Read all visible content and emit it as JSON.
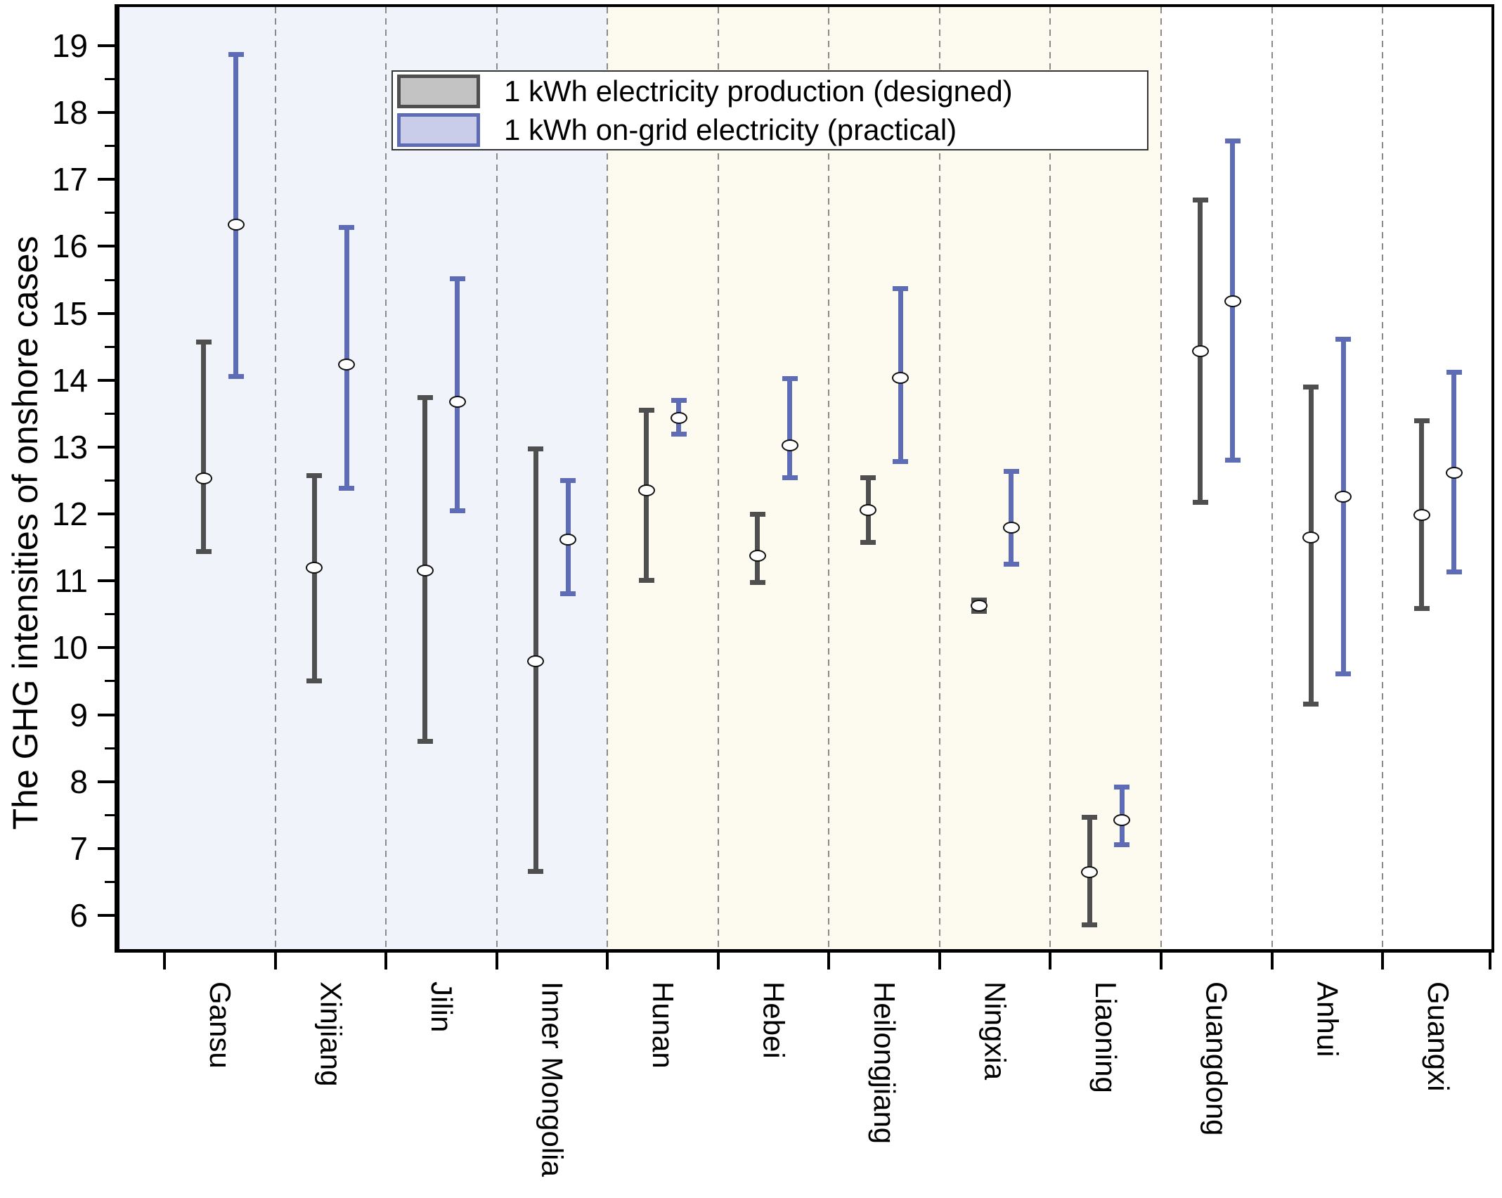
{
  "chart_data": {
    "type": "scatter",
    "subtype": "error-bar",
    "title": "",
    "xlabel": "",
    "ylabel": "The GHG intensities of onshore cases",
    "ylim": [
      5.5,
      19.6
    ],
    "yticks_major": [
      6,
      7,
      8,
      9,
      10,
      11,
      12,
      13,
      14,
      15,
      16,
      17,
      18,
      19
    ],
    "ytick_minor_values": [
      6.5,
      7.5,
      8.5,
      9.5,
      10.5,
      11.5,
      12.5,
      13.5,
      14.5,
      15.5,
      16.5,
      17.5,
      18.5
    ],
    "grid": "vertical-dashed-separators-between-categories",
    "legend_position": "top-center-inside",
    "separator_color": "#8a8a8a",
    "marker": {
      "shape": "ellipse",
      "fill": "#ffffff",
      "stroke": "#111111"
    },
    "categories": [
      "Gansu",
      "Xinjiang",
      "Jilin",
      "Inner Mongolia",
      "Hunan",
      "Hebei",
      "Heilongjiang",
      "Ningxia",
      "Liaoning",
      "Guangdong",
      "Anhui",
      "Guangxi"
    ],
    "series": [
      {
        "name": "1 kWh electricity production (designed)",
        "color": "#4f4f4f",
        "legend_fill": "#c3c3c3",
        "points": [
          {
            "y": 12.53,
            "lo": 11.43,
            "hi": 14.58
          },
          {
            "y": 11.2,
            "lo": 9.5,
            "hi": 12.58
          },
          {
            "y": 11.15,
            "lo": 8.6,
            "hi": 13.74
          },
          {
            "y": 9.8,
            "lo": 6.65,
            "hi": 12.98
          },
          {
            "y": 12.35,
            "lo": 11.0,
            "hi": 13.56
          },
          {
            "y": 11.38,
            "lo": 10.97,
            "hi": 12.0
          },
          {
            "y": 12.06,
            "lo": 11.57,
            "hi": 12.55
          },
          {
            "y": 10.63,
            "lo": 10.54,
            "hi": 10.72
          },
          {
            "y": 6.65,
            "lo": 5.85,
            "hi": 7.47
          },
          {
            "y": 14.43,
            "lo": 12.17,
            "hi": 16.7
          },
          {
            "y": 11.65,
            "lo": 9.15,
            "hi": 13.9
          },
          {
            "y": 11.98,
            "lo": 10.58,
            "hi": 13.4
          }
        ]
      },
      {
        "name": "1 kWh on-grid electricity (practical)",
        "color": "#5d6cb4",
        "legend_fill": "#c9cde9",
        "points": [
          {
            "y": 16.33,
            "lo": 14.05,
            "hi": 18.87
          },
          {
            "y": 14.23,
            "lo": 12.38,
            "hi": 16.29
          },
          {
            "y": 13.68,
            "lo": 12.04,
            "hi": 15.52
          },
          {
            "y": 11.62,
            "lo": 10.8,
            "hi": 12.5
          },
          {
            "y": 13.44,
            "lo": 13.19,
            "hi": 13.7
          },
          {
            "y": 13.02,
            "lo": 12.54,
            "hi": 14.03
          },
          {
            "y": 14.03,
            "lo": 12.78,
            "hi": 15.37
          },
          {
            "y": 11.8,
            "lo": 11.24,
            "hi": 12.64
          },
          {
            "y": 7.42,
            "lo": 7.05,
            "hi": 7.92
          },
          {
            "y": 15.18,
            "lo": 12.8,
            "hi": 17.58
          },
          {
            "y": 12.26,
            "lo": 9.6,
            "hi": 14.62
          },
          {
            "y": 12.62,
            "lo": 11.13,
            "hi": 14.12
          }
        ]
      }
    ],
    "bands": [
      {
        "from_category": 0,
        "to_category": 3,
        "color": "#f0f4fa"
      },
      {
        "from_category": 4,
        "to_category": 8,
        "color": "#fdfaef"
      },
      {
        "from_category": 9,
        "to_category": 11,
        "color": "#ffffff"
      }
    ]
  }
}
